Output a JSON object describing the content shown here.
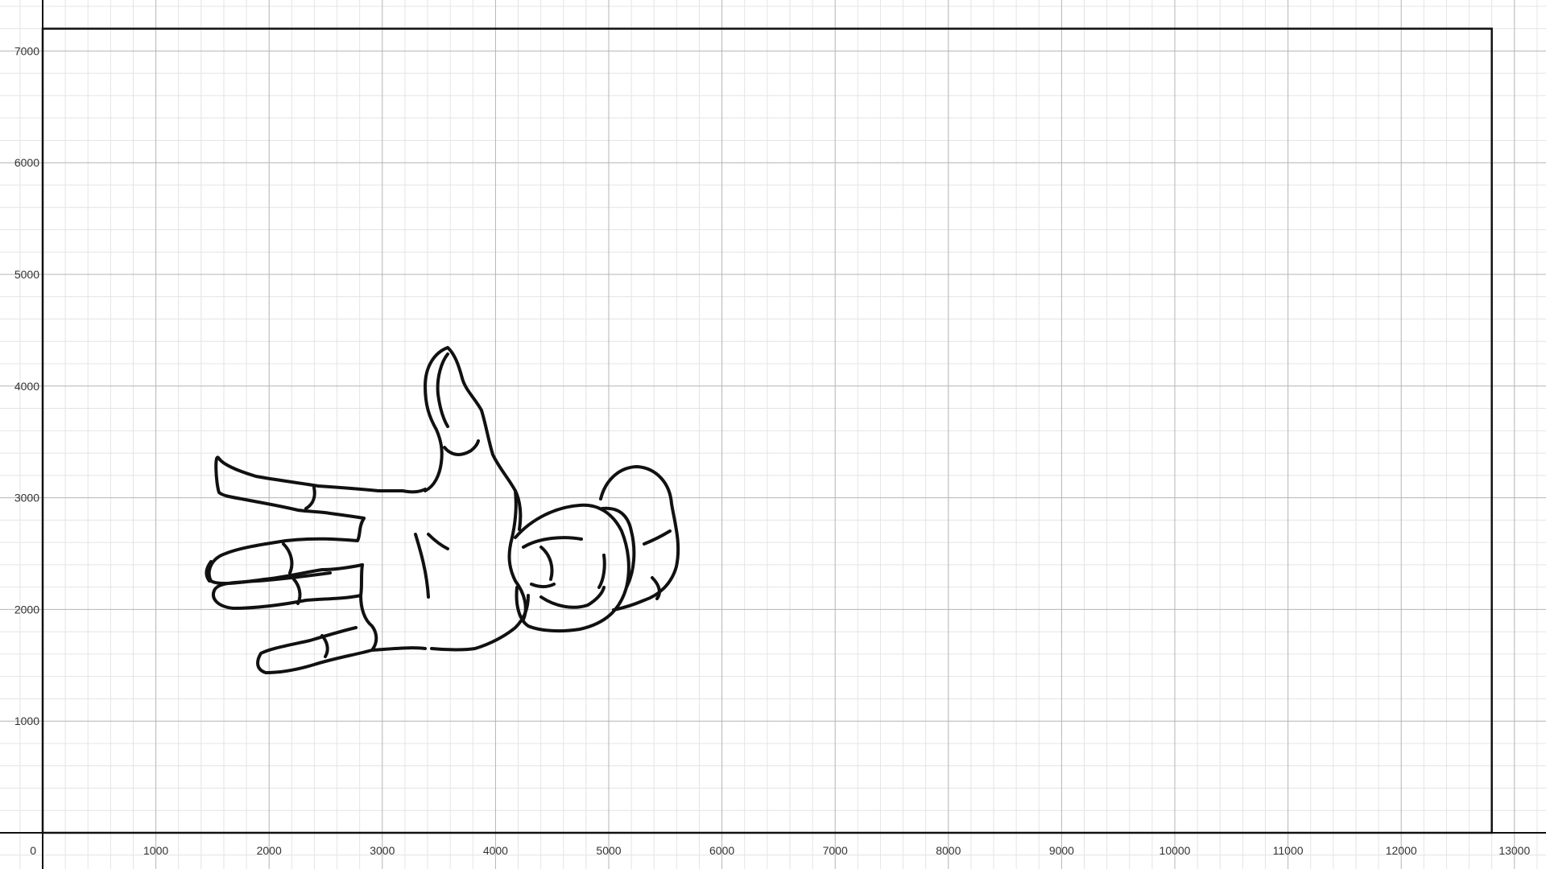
{
  "graph": {
    "x_axis": {
      "min": 0,
      "max": 13000,
      "major_step": 1000,
      "minor_step": 200,
      "tick_labels": [
        "0",
        "1000",
        "2000",
        "3000",
        "4000",
        "5000",
        "6000",
        "7000",
        "8000",
        "9000",
        "10000",
        "11000",
        "12000",
        "13000"
      ]
    },
    "y_axis": {
      "min": 0,
      "max": 7000,
      "major_step": 1000,
      "minor_step": 200,
      "tick_labels": [
        "1000",
        "2000",
        "3000",
        "4000",
        "5000",
        "6000",
        "7000"
      ]
    },
    "grid": true,
    "colors": {
      "background": "#ffffff",
      "minor_grid": "#e4e4e4",
      "major_grid": "#b4b4b4",
      "axis": "#111111",
      "sketch": "#111111"
    },
    "rectangle": {
      "x_min": 0,
      "x_max": 12800,
      "y_min": 0,
      "y_max": 7200
    },
    "drawing": {
      "subject": "hand-sketch",
      "stroke_color": "#111111"
    }
  }
}
